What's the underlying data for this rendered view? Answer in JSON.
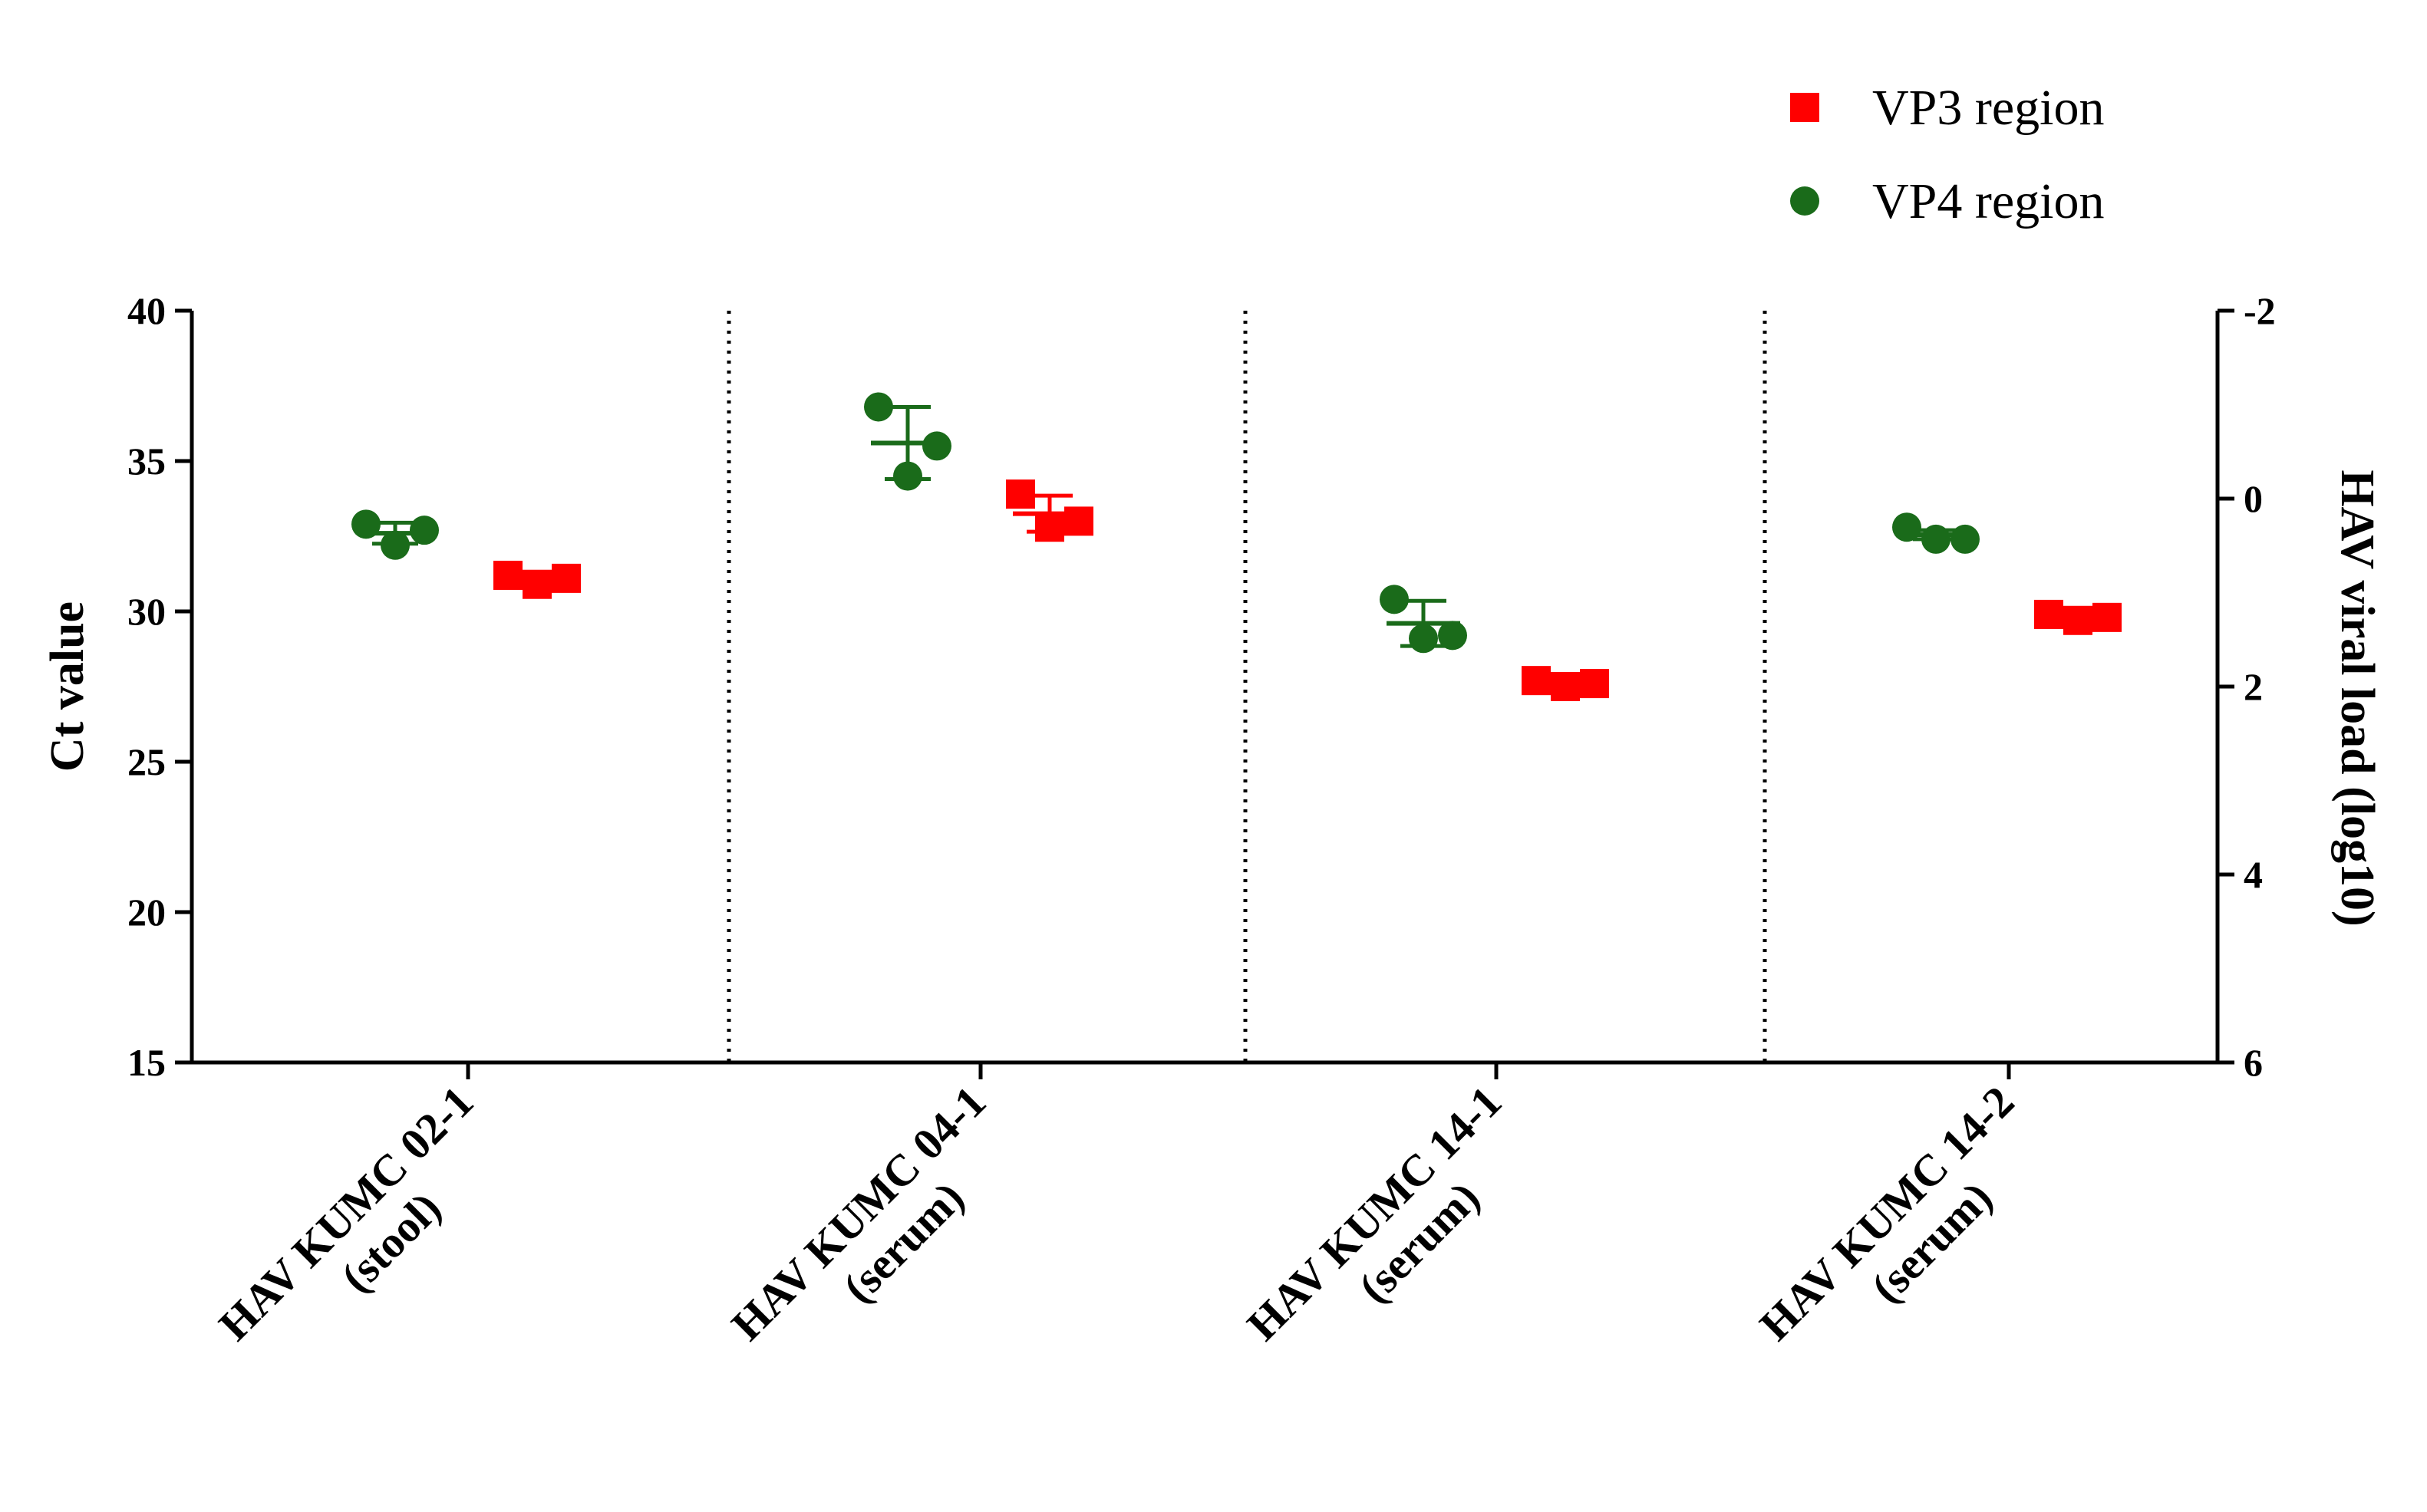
{
  "chart_data": {
    "type": "scatter",
    "title": "",
    "xlabel": "",
    "ylabel": "Ct value",
    "ylabel_right": "HAV viral load (log10)",
    "ylim": [
      15,
      40
    ],
    "yticks": [
      15,
      20,
      25,
      30,
      35,
      40
    ],
    "ylim_right": [
      6,
      -2
    ],
    "yticks_right": [
      6,
      4,
      2,
      0,
      -2
    ],
    "grid": false,
    "legend_position": "top-right",
    "categories": [
      {
        "line1": "HAV KUMC 02-1",
        "line2": "(stool)"
      },
      {
        "line1": "HAV KUMC 04-1",
        "line2": "(serum)"
      },
      {
        "line1": "HAV KUMC 14-1",
        "line2": "(serum)"
      },
      {
        "line1": "HAV KUMC 14-2",
        "line2": "(serum)"
      }
    ],
    "series": [
      {
        "name": "VP4 region",
        "marker": "circle",
        "color": "#1a6b1a",
        "points": [
          [
            32.9,
            32.2,
            32.7
          ],
          [
            36.8,
            34.5,
            35.5
          ],
          [
            30.4,
            29.1,
            29.2
          ],
          [
            32.8,
            32.4,
            32.4
          ]
        ],
        "mean": [
          32.6,
          35.6,
          29.6,
          32.55
        ],
        "sd": [
          0.35,
          1.2,
          0.75,
          0.15
        ]
      },
      {
        "name": "VP3 region",
        "marker": "square",
        "color": "#ff0000",
        "points": [
          [
            31.2,
            30.9,
            31.1
          ],
          [
            33.9,
            32.8,
            33.0
          ],
          [
            27.7,
            27.5,
            27.6
          ],
          [
            29.9,
            29.7,
            29.8
          ]
        ],
        "mean": [
          31.07,
          33.25,
          27.6,
          29.8
        ],
        "sd": [
          0.15,
          0.6,
          0.1,
          0.1
        ]
      }
    ]
  },
  "legend": {
    "items": [
      {
        "label": "VP3 region",
        "marker": "square",
        "color": "#ff0000"
      },
      {
        "label": "VP4 region",
        "marker": "circle",
        "color": "#1a6b1a"
      }
    ]
  }
}
